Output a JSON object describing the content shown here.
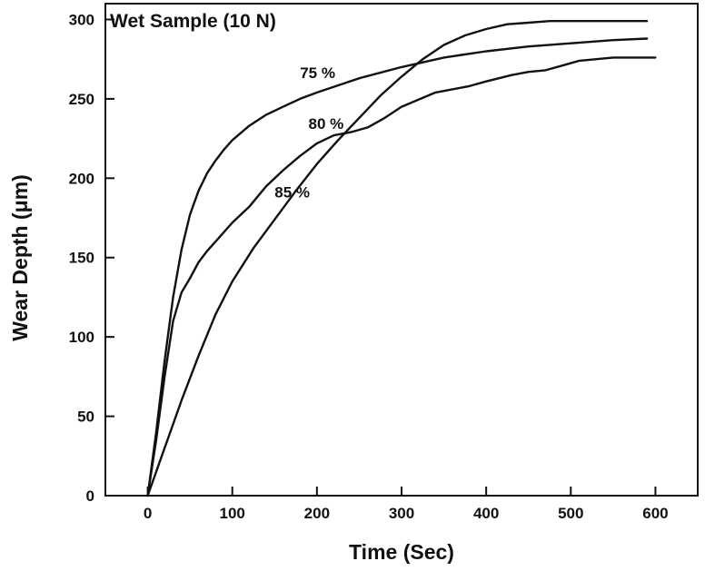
{
  "chart_data": {
    "type": "line",
    "title": "Wet Sample (10 N)",
    "xlabel": "Time (Sec)",
    "ylabel": "Wear Depth (μm)",
    "xlim": [
      -50,
      650
    ],
    "ylim": [
      0,
      310
    ],
    "xticks": [
      0,
      100,
      200,
      300,
      400,
      500,
      600
    ],
    "yticks": [
      0,
      50,
      100,
      150,
      200,
      250,
      300
    ],
    "grid": false,
    "legend": "none",
    "line_color": "#111111",
    "series": [
      {
        "name": "75 %",
        "x": [
          0,
          10,
          20,
          30,
          40,
          50,
          60,
          70,
          80,
          90,
          100,
          120,
          140,
          160,
          180,
          200,
          250,
          300,
          350,
          400,
          450,
          500,
          550,
          590
        ],
        "y": [
          0,
          40,
          85,
          125,
          155,
          177,
          192,
          203,
          211,
          218,
          224,
          233,
          240,
          245,
          250,
          254,
          263,
          270,
          276,
          280,
          283,
          285,
          287,
          288
        ]
      },
      {
        "name": "80 %",
        "x": [
          0,
          10,
          20,
          30,
          40,
          50,
          60,
          70,
          80,
          100,
          120,
          140,
          160,
          180,
          200,
          220,
          240,
          260,
          280,
          300,
          340,
          380,
          400,
          430,
          450,
          470,
          490,
          510,
          550,
          600
        ],
        "y": [
          0,
          35,
          75,
          110,
          128,
          137,
          147,
          154,
          160,
          172,
          182,
          195,
          205,
          214,
          222,
          227,
          229,
          232,
          238,
          245,
          254,
          258,
          261,
          265,
          267,
          268,
          271,
          274,
          276,
          276
        ]
      },
      {
        "name": "85 %",
        "x": [
          0,
          20,
          40,
          60,
          80,
          100,
          125,
          150,
          175,
          200,
          225,
          250,
          275,
          300,
          325,
          350,
          375,
          400,
          425,
          450,
          475,
          500,
          525,
          550,
          590
        ],
        "y": [
          0,
          30,
          60,
          88,
          114,
          135,
          156,
          174,
          192,
          209,
          224,
          238,
          252,
          264,
          275,
          284,
          290,
          294,
          297,
          298,
          299,
          299,
          299,
          299,
          299
        ]
      }
    ],
    "series_labels": [
      {
        "text": "75 %",
        "x": 180,
        "y": 263
      },
      {
        "text": "80 %",
        "x": 190,
        "y": 231
      },
      {
        "text": "85 %",
        "x": 150,
        "y": 188
      }
    ]
  }
}
